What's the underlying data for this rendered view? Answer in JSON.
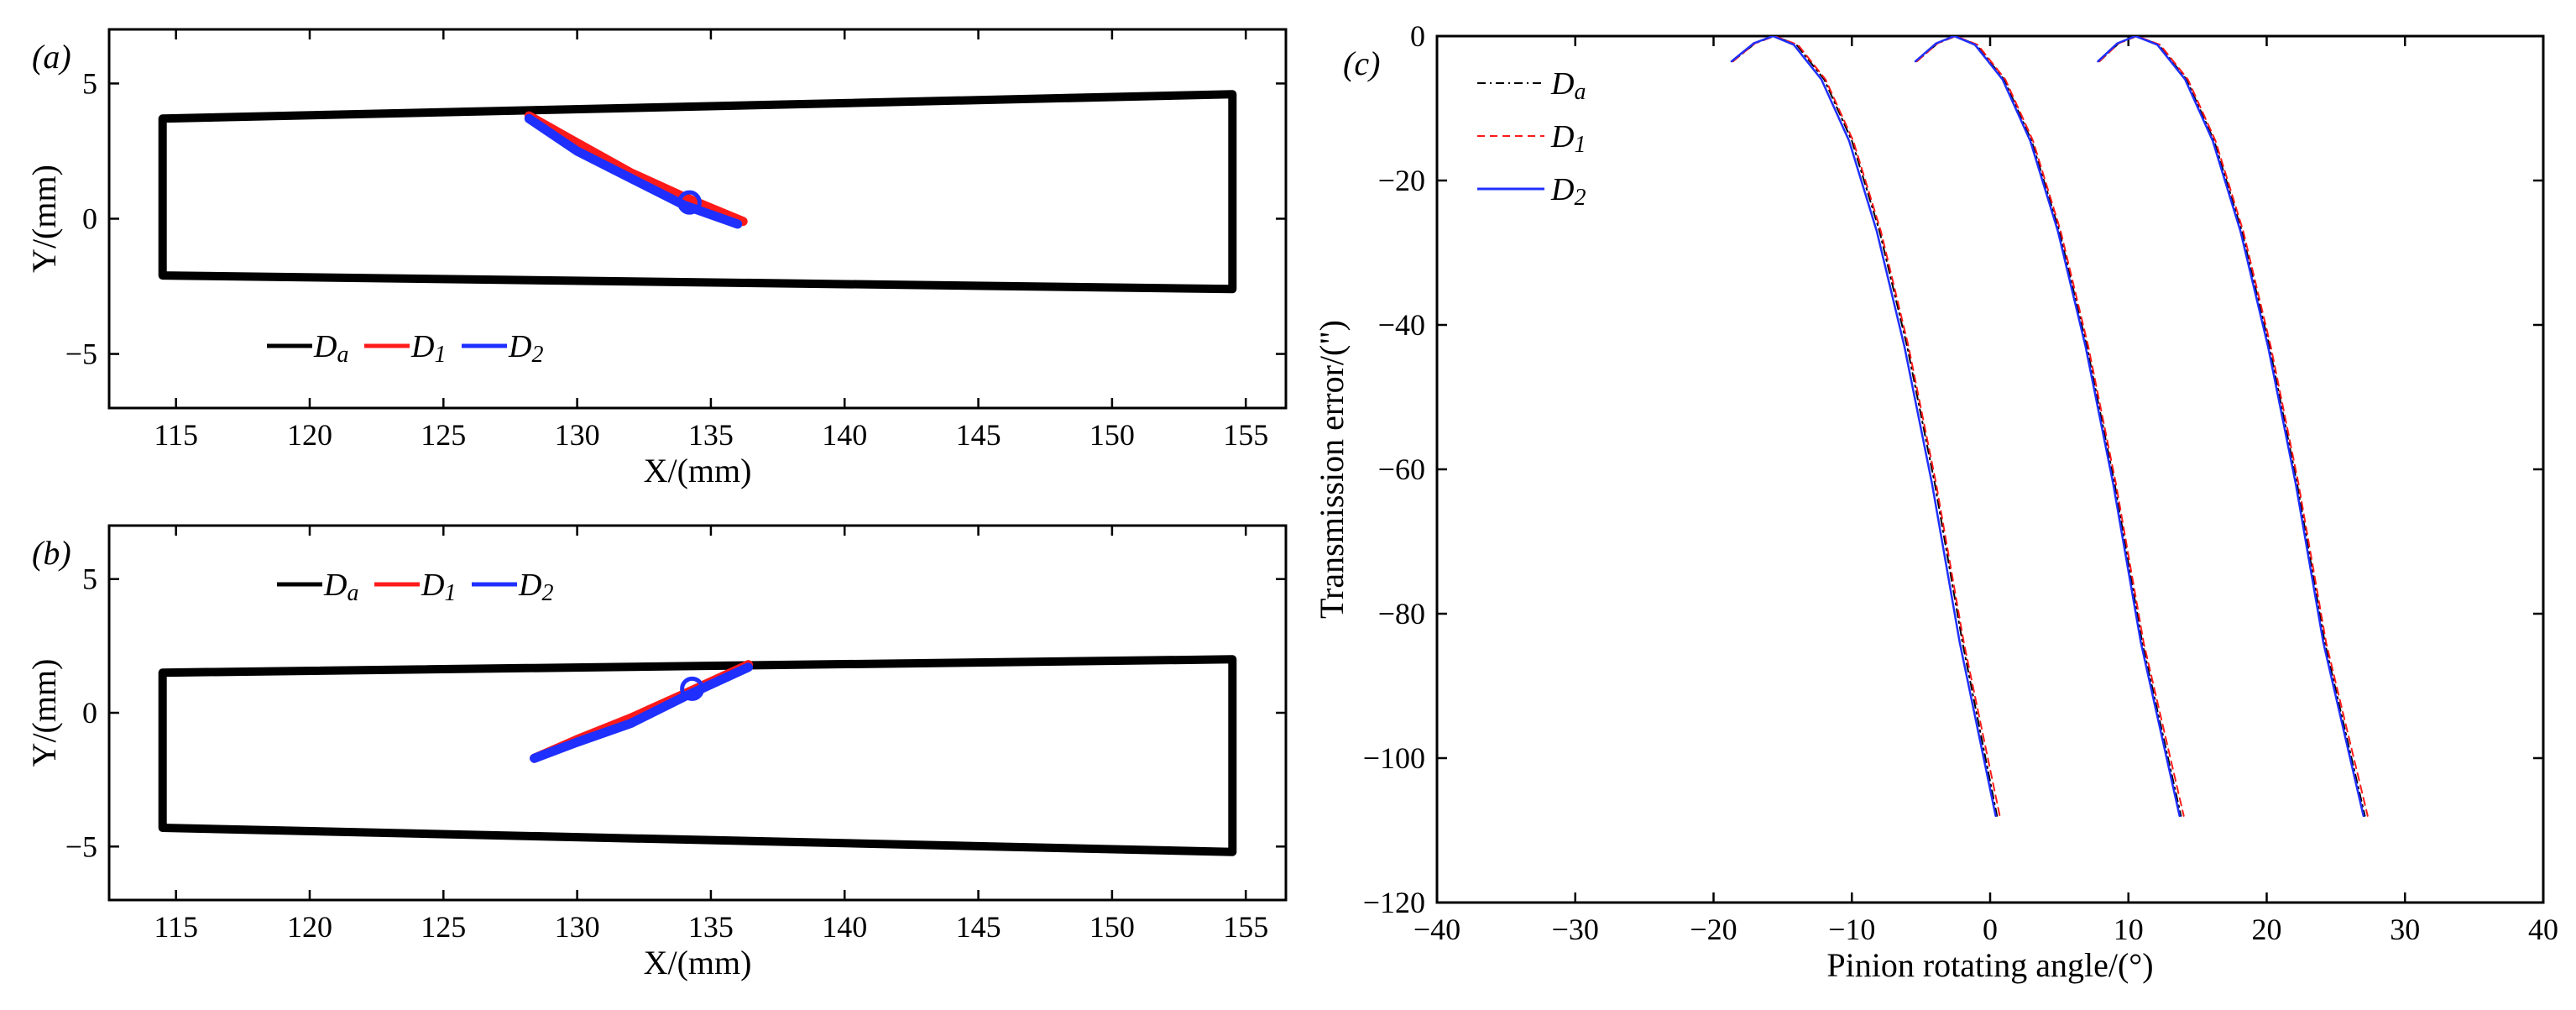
{
  "colors": {
    "Da": "#000000",
    "D1": "#ff1a1a",
    "D2": "#1f2fff"
  },
  "chart_data": [
    {
      "id": "a",
      "type": "line",
      "panel_label": "(a)",
      "xlabel": "X/(mm)",
      "ylabel": "Y/(mm)",
      "xlim": [
        112.5,
        156.5
      ],
      "ylim": [
        -7,
        7
      ],
      "xticks": [
        "115",
        "120",
        "125",
        "130",
        "135",
        "140",
        "145",
        "150",
        "155"
      ],
      "yticks": [
        "5",
        "0",
        "−5"
      ],
      "legend": {
        "placement": "bottom-left",
        "entries": [
          "Da",
          "D1",
          "D2"
        ]
      },
      "series": [
        {
          "key": "Da",
          "name": "D",
          "sub": "a",
          "style": "solid-thick",
          "x": [
            114.5,
            154.5,
            154.5,
            114.5,
            114.5
          ],
          "y": [
            3.7,
            4.6,
            -2.6,
            -2.1,
            3.7
          ]
        },
        {
          "key": "D1",
          "name": "D",
          "sub": "1",
          "style": "thick-line",
          "x": [
            128.2,
            130,
            132,
            134,
            136.2
          ],
          "y": [
            3.8,
            2.8,
            1.7,
            0.8,
            -0.1
          ]
        },
        {
          "key": "D2",
          "name": "D",
          "sub": "2",
          "style": "thick-line",
          "x": [
            128.2,
            130,
            132,
            134,
            136
          ],
          "y": [
            3.7,
            2.5,
            1.5,
            0.5,
            -0.2
          ]
        }
      ],
      "center_marker": {
        "x": 134.2,
        "y": 0.6
      }
    },
    {
      "id": "b",
      "type": "line",
      "panel_label": "(b)",
      "xlabel": "X/(mm)",
      "ylabel": "Y/(mm)",
      "xlim": [
        112.5,
        156.5
      ],
      "ylim": [
        -7,
        7
      ],
      "xticks": [
        "115",
        "120",
        "125",
        "130",
        "135",
        "140",
        "145",
        "150",
        "155"
      ],
      "yticks": [
        "5",
        "0",
        "−5"
      ],
      "legend": {
        "placement": "top-left",
        "entries": [
          "Da",
          "D1",
          "D2"
        ]
      },
      "series": [
        {
          "key": "Da",
          "name": "D",
          "sub": "a",
          "style": "solid-thick",
          "x": [
            114.5,
            154.5,
            154.5,
            114.5,
            114.5
          ],
          "y": [
            1.5,
            2.0,
            -5.2,
            -4.3,
            1.5
          ]
        },
        {
          "key": "D1",
          "name": "D",
          "sub": "1",
          "style": "thick-line",
          "x": [
            128.4,
            130,
            132,
            134,
            136.4
          ],
          "y": [
            -1.7,
            -1.0,
            -0.2,
            0.7,
            1.8
          ]
        },
        {
          "key": "D2",
          "name": "D",
          "sub": "2",
          "style": "thick-line",
          "x": [
            128.4,
            130,
            132,
            134,
            136.4
          ],
          "y": [
            -1.7,
            -1.1,
            -0.4,
            0.6,
            1.7
          ]
        }
      ],
      "center_marker": {
        "x": 134.3,
        "y": 0.9
      }
    },
    {
      "id": "c",
      "type": "line",
      "panel_label": "(c)",
      "xlabel": "Pinion rotating angle/(°)",
      "ylabel": "Transmission error/(\")",
      "xlim": [
        -40,
        40
      ],
      "ylim": [
        -120,
        0
      ],
      "xticks": [
        "−40",
        "−30",
        "−20",
        "−10",
        "0",
        "10",
        "20",
        "30",
        "40"
      ],
      "yticks": [
        "0",
        "−20",
        "−40",
        "−60",
        "−80",
        "−100",
        "−120"
      ],
      "legend": {
        "placement": "top-left",
        "entries": [
          "Da",
          "D1",
          "D2"
        ]
      },
      "series": [
        {
          "key": "Da",
          "name": "D",
          "sub": "a",
          "style": "dashdot",
          "curves": [
            {
              "x": [
                -18.6,
                -17,
                -15.6,
                -14,
                -12,
                -10,
                -8,
                -6,
                -4,
                -2,
                0.5
              ],
              "y": [
                -3.5,
                -1.0,
                0.0,
                -1.2,
                -6.0,
                -14.5,
                -27,
                -43,
                -62,
                -84,
                -108
              ]
            },
            {
              "x": [
                -5.3,
                -3.8,
                -2.5,
                -1,
                1,
                3,
                5,
                7,
                9,
                11,
                13.8
              ],
              "y": [
                -3.5,
                -1.0,
                0.0,
                -1.2,
                -6.0,
                -14.5,
                -27,
                -43,
                -62,
                -84,
                -108
              ]
            },
            {
              "x": [
                7.9,
                9.3,
                10.6,
                12.2,
                14.2,
                16.2,
                18.2,
                20.2,
                22.2,
                24.2,
                27.1
              ],
              "y": [
                -3.5,
                -1.0,
                0.0,
                -1.2,
                -6.0,
                -14.5,
                -27,
                -43,
                -62,
                -84,
                -108
              ]
            }
          ]
        },
        {
          "key": "D1",
          "name": "D",
          "sub": "1",
          "style": "dashed",
          "curves": [
            {
              "x": [
                -18.6,
                -17,
                -15.6,
                -13.9,
                -11.9,
                -9.9,
                -7.9,
                -5.9,
                -3.9,
                -1.9,
                0.7
              ],
              "y": [
                -3.5,
                -1.0,
                0.0,
                -1.2,
                -6.0,
                -14.5,
                -27,
                -43,
                -62,
                -84,
                -108
              ]
            },
            {
              "x": [
                -5.3,
                -3.8,
                -2.5,
                -0.9,
                1.1,
                3.1,
                5.1,
                7.1,
                9.1,
                11.1,
                14.0
              ],
              "y": [
                -3.5,
                -1.0,
                0.0,
                -1.2,
                -6.0,
                -14.5,
                -27,
                -43,
                -62,
                -84,
                -108
              ]
            },
            {
              "x": [
                7.9,
                9.3,
                10.6,
                12.3,
                14.3,
                16.3,
                18.3,
                20.3,
                22.3,
                24.3,
                27.3
              ],
              "y": [
                -3.5,
                -1.0,
                0.0,
                -1.2,
                -6.0,
                -14.5,
                -27,
                -43,
                -62,
                -84,
                -108
              ]
            }
          ]
        },
        {
          "key": "D2",
          "name": "D",
          "sub": "2",
          "style": "solid",
          "curves": [
            {
              "x": [
                -18.7,
                -17.1,
                -15.7,
                -14.2,
                -12.2,
                -10.2,
                -8.2,
                -6.2,
                -4.2,
                -2.2,
                0.4
              ],
              "y": [
                -3.5,
                -1.0,
                0.0,
                -1.2,
                -6.0,
                -14.5,
                -27,
                -43,
                -62,
                -84,
                -108
              ]
            },
            {
              "x": [
                -5.4,
                -3.9,
                -2.6,
                -1.1,
                0.9,
                2.9,
                4.9,
                6.9,
                8.9,
                10.9,
                13.7
              ],
              "y": [
                -3.5,
                -1.0,
                0.0,
                -1.2,
                -6.0,
                -14.5,
                -27,
                -43,
                -62,
                -84,
                -108
              ]
            },
            {
              "x": [
                7.8,
                9.2,
                10.5,
                12.1,
                14.1,
                16.1,
                18.1,
                20.1,
                22.1,
                24.1,
                27.0
              ],
              "y": [
                -3.5,
                -1.0,
                0.0,
                -1.2,
                -6.0,
                -14.5,
                -27,
                -43,
                -62,
                -84,
                -108
              ]
            }
          ]
        }
      ]
    }
  ]
}
